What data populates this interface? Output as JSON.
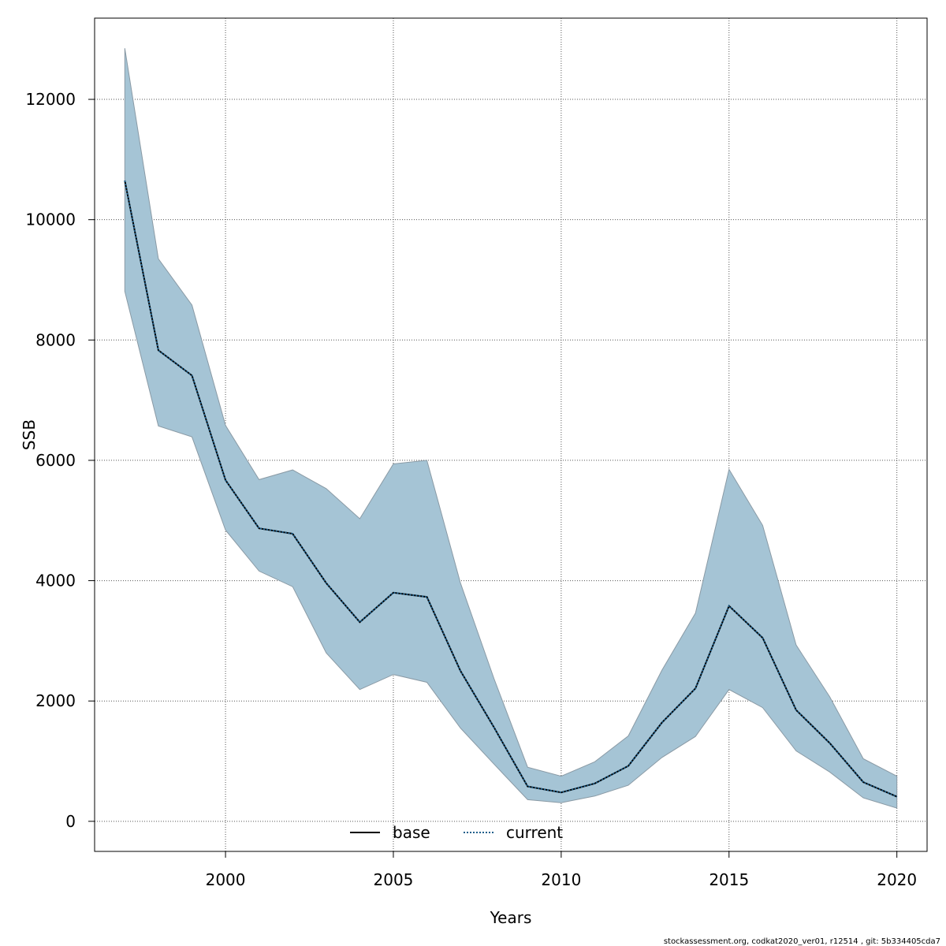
{
  "chart_data": {
    "type": "line",
    "xlabel": "Years",
    "ylabel": "SSB",
    "xlim": [
      1996.1,
      2020.9
    ],
    "ylim": [
      -500,
      13350
    ],
    "xticks": [
      2000,
      2005,
      2010,
      2015,
      2020
    ],
    "yticks": [
      0,
      2000,
      4000,
      6000,
      8000,
      10000,
      12000
    ],
    "grid": true,
    "legend_position": "bottom-center",
    "band_color": "#a5c4d5",
    "band_edge_color": "#8a9aa5",
    "x": [
      1997,
      1998,
      1999,
      2000,
      2001,
      2002,
      2003,
      2004,
      2005,
      2006,
      2007,
      2008,
      2009,
      2010,
      2011,
      2012,
      2013,
      2014,
      2015,
      2016,
      2017,
      2018,
      2019,
      2020
    ],
    "band_upper": [
      12850,
      9350,
      8580,
      6580,
      5680,
      5840,
      5530,
      5030,
      5940,
      6000,
      3960,
      2370,
      900,
      750,
      990,
      1420,
      2510,
      3460,
      5850,
      4920,
      2930,
      2070,
      1040,
      750
    ],
    "band_lower": [
      8810,
      6570,
      6390,
      4840,
      4160,
      3900,
      2800,
      2190,
      2440,
      2310,
      1550,
      950,
      360,
      310,
      420,
      600,
      1060,
      1410,
      2190,
      1890,
      1170,
      820,
      390,
      220
    ],
    "series": [
      {
        "name": "base",
        "color": "#000000",
        "dash": "solid",
        "values": [
          10650,
          7830,
          7410,
          5670,
          4870,
          4780,
          3960,
          3310,
          3800,
          3730,
          2500,
          1560,
          580,
          480,
          630,
          920,
          1640,
          2210,
          3580,
          3050,
          1850,
          1300,
          650,
          410
        ]
      },
      {
        "name": "current",
        "color": "#1f5f8b",
        "dash": "dotted",
        "values": [
          10650,
          7830,
          7410,
          5670,
          4870,
          4780,
          3960,
          3310,
          3800,
          3730,
          2500,
          1560,
          580,
          480,
          630,
          920,
          1640,
          2210,
          3580,
          3050,
          1850,
          1300,
          650,
          410
        ]
      }
    ],
    "footer": "stockassessment.org, codkat2020_ver01, r12514 , git: 5b334405cda7"
  }
}
